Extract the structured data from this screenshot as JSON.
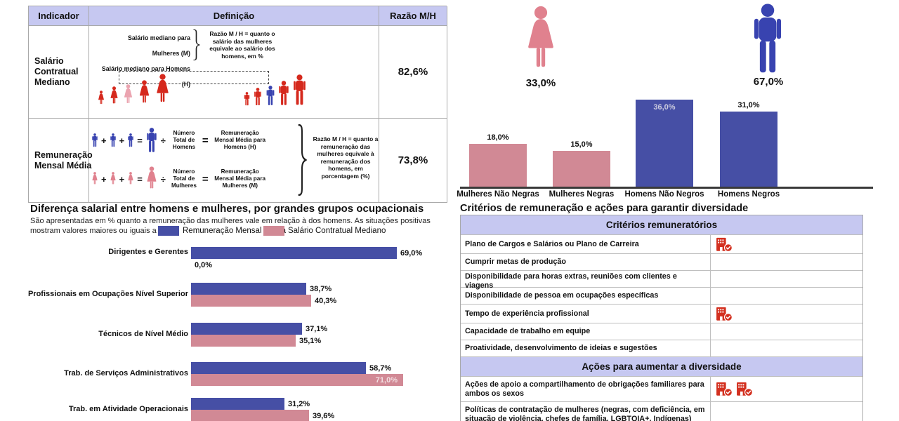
{
  "indicator_table": {
    "headers": [
      "Indicador",
      "Definição",
      "Razão M/H"
    ],
    "rows": [
      {
        "indicator": "Salário Contratual Mediano",
        "ratio": "82,6%",
        "def_line1": "Salário mediano para Mulheres (M)",
        "def_line2": "Salário mediano para Homens (H)",
        "note": "Razão M / H = quanto o salário das mulheres equivale ao salário dos homens, em %"
      },
      {
        "indicator": "Remuneração Mensal Média",
        "ratio": "73,8%",
        "formulas": [
          {
            "gender": "men",
            "divisor": "Número Total de Homens",
            "result": "Remuneração Mensal Média para Homens (H)"
          },
          {
            "gender": "women",
            "divisor": "Número Total de Mulheres",
            "result": "Remuneração Mensal Média para Mulheres (M)"
          }
        ],
        "note": "Razão M / H = quanto a remuneração das mulheres equivale à remuneração dos homens, em porcentagem (%)"
      }
    ]
  },
  "operators": {
    "plus": "+",
    "equals": "=",
    "divide": "÷"
  },
  "gender_split": {
    "female_pct": "33,0%",
    "male_pct": "67,0%"
  },
  "chart_data": [
    {
      "type": "bar",
      "title": "",
      "categories": [
        "Mulheres Não Negras",
        "Mulheres Negras",
        "Homens Não Negros",
        "Homens Negros"
      ],
      "values": [
        18.0,
        15.0,
        36.0,
        31.0
      ],
      "labels": [
        "18,0%",
        "15,0%",
        "36,0%",
        "31,0%"
      ],
      "label_inside": [
        false,
        false,
        true,
        false
      ],
      "bar_colors": [
        "#d18995",
        "#d18995",
        "#464fa5",
        "#464fa5"
      ],
      "xlabel": "",
      "ylabel": "",
      "ylim": [
        0,
        40
      ],
      "grid": false
    },
    {
      "type": "bar-horizontal",
      "title": "Diferença salarial entre homens e mulheres, por grandes grupos ocupacionais",
      "subtitle_line1": "São apresentadas em % quanto a remuneração das mulheres vale em relação à dos homens. As situações positivas",
      "subtitle_line2": "mostram valores maiores ou iguais a 100%",
      "categories": [
        "Dirigentes e Gerentes",
        "Profissionais em Ocupações Nível Superior",
        "Técnicos de Nível Médio",
        "Trab. de Serviços Administrativos",
        "Trab. em Atividade Operacionais"
      ],
      "series": [
        {
          "name": "Remuneração Mensal Média",
          "color": "#464fa5",
          "values": [
            69.0,
            38.7,
            37.1,
            58.7,
            31.2
          ],
          "labels": [
            "69,0%",
            "38,7%",
            "37,1%",
            "58,7%",
            "31,2%"
          ],
          "label_inside": [
            false,
            false,
            false,
            false,
            false
          ]
        },
        {
          "name": "Salário Contratual Mediano",
          "color": "#d18995",
          "values": [
            0.0,
            40.3,
            35.1,
            71.0,
            39.6
          ],
          "labels": [
            "0,0%",
            "40,3%",
            "35,1%",
            "71,0%",
            "39,6%"
          ],
          "label_inside": [
            false,
            false,
            false,
            true,
            false
          ]
        }
      ],
      "xlim": [
        0,
        100
      ],
      "grid": false,
      "legend_position": "top"
    }
  ],
  "criterios": {
    "title": "Critérios de remuneração e ações para garantir diversidade",
    "sections": [
      {
        "header": "Critérios remuneratórios",
        "rows": [
          {
            "label": "Plano de Cargos e Salários ou Plano de Carreira",
            "icons": 1,
            "tall": false
          },
          {
            "label": "Cumprir metas de produção",
            "icons": 0,
            "tall": false
          },
          {
            "label": "Disponibilidade para horas extras, reuniões com clientes e viagens",
            "icons": 0,
            "tall": false
          },
          {
            "label": "Disponibilidade de pessoa em ocupações específicas",
            "icons": 0,
            "tall": false
          },
          {
            "label": "Tempo de experiência profissional",
            "icons": 1,
            "tall": false
          },
          {
            "label": "Capacidade de trabalho em equipe",
            "icons": 0,
            "tall": false
          },
          {
            "label": "Proatividade, desenvolvimento de ideias e sugestões",
            "icons": 0,
            "tall": false
          }
        ]
      },
      {
        "header": "Ações para aumentar a diversidade",
        "rows": [
          {
            "label": "Ações de apoio a compartilhamento de obrigações familiares para ambos os sexos",
            "icons": 2,
            "tall": true
          },
          {
            "label": "Políticas de contratação de mulheres (negras, com deficiência, em situação de violência, chefes de família, LGBTQIA+, Indígenas)",
            "icons": 0,
            "tall": true
          }
        ]
      }
    ]
  },
  "colors": {
    "accent_blue": "#3843b0",
    "bar_blue": "#464fa5",
    "accent_pink": "#e0818e",
    "bar_pink": "#d18995",
    "highlight_pink": "#eba4b0",
    "people_red": "#d5291d",
    "lavender": "#c6c8f1",
    "icon_red": "#d3301f",
    "inside_label_blue_bar": "#ccccdf",
    "inside_label_pink_bar": "#f2dfe2"
  }
}
